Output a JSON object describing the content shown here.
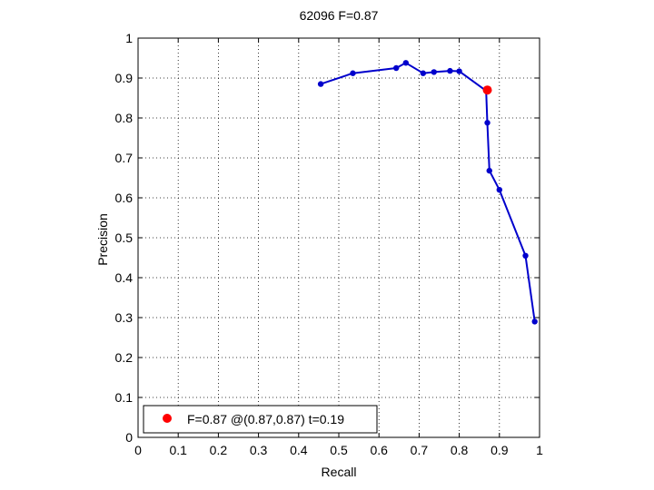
{
  "chart_data": {
    "type": "line",
    "title": "62096 F=0.87",
    "xlabel": "Recall",
    "ylabel": "Precision",
    "xlim": [
      0,
      1
    ],
    "ylim": [
      0,
      1
    ],
    "xticks": [
      "0",
      "0.1",
      "0.2",
      "0.3",
      "0.4",
      "0.5",
      "0.6",
      "0.7",
      "0.8",
      "0.9",
      "1"
    ],
    "yticks": [
      "0",
      "0.1",
      "0.2",
      "0.3",
      "0.4",
      "0.5",
      "0.6",
      "0.7",
      "0.8",
      "0.9",
      "1"
    ],
    "grid": true,
    "series": [
      {
        "color": "#0000cc",
        "x": [
          0.455,
          0.535,
          0.643,
          0.667,
          0.71,
          0.737,
          0.777,
          0.8,
          0.867,
          0.87,
          0.875,
          0.9,
          0.965,
          0.988
        ],
        "y": [
          0.885,
          0.912,
          0.925,
          0.938,
          0.912,
          0.915,
          0.918,
          0.917,
          0.868,
          0.788,
          0.668,
          0.62,
          0.455,
          0.29
        ]
      }
    ],
    "best_point": {
      "x": 0.87,
      "y": 0.87,
      "color": "#ff0000"
    },
    "legend": {
      "text": "F=0.87 @(0.87,0.87) t=0.19",
      "location": "bottom-left",
      "marker_color": "#ff0000"
    }
  }
}
